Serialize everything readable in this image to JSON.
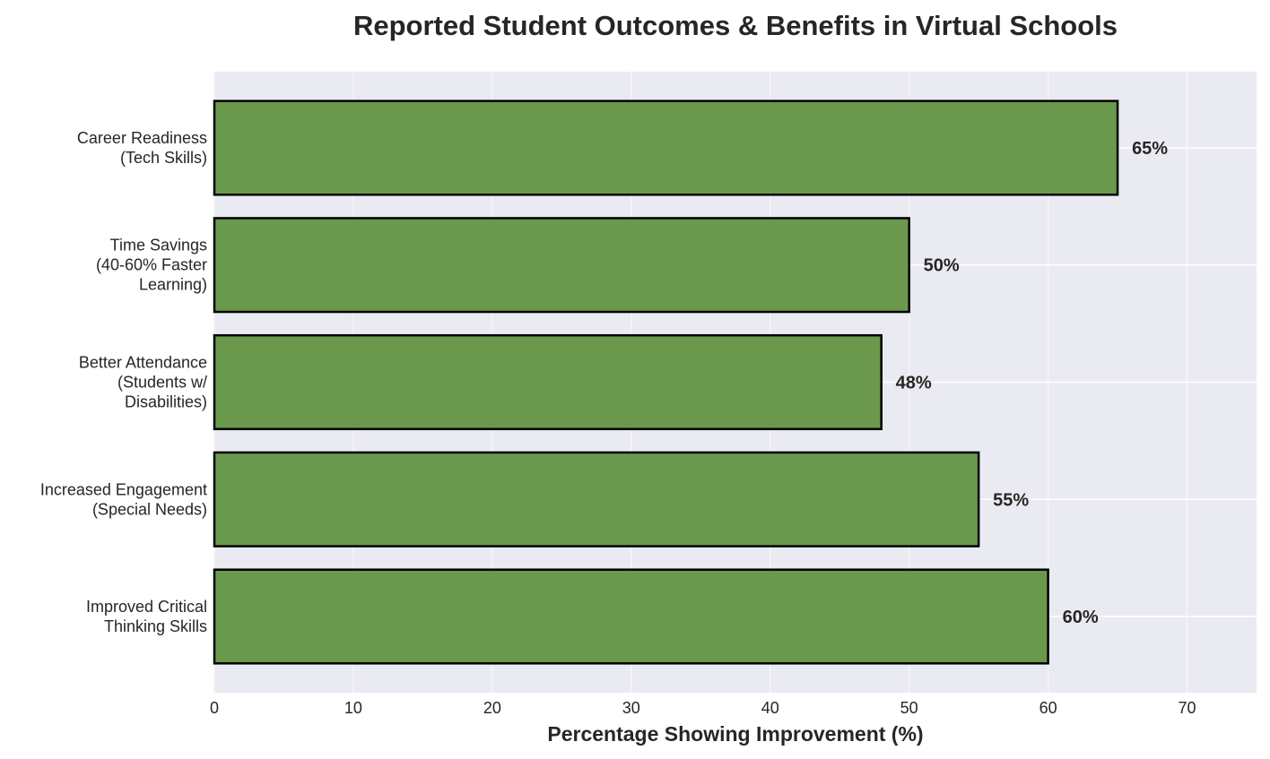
{
  "chart_data": {
    "type": "bar",
    "orientation": "horizontal",
    "title": "Reported Student Outcomes & Benefits in Virtual Schools",
    "xlabel": "Percentage Showing Improvement (%)",
    "ylabel": "",
    "categories": [
      [
        "Improved Critical",
        "Thinking Skills"
      ],
      [
        "Increased Engagement",
        "(Special Needs)"
      ],
      [
        "Better Attendance",
        "(Students w/",
        "Disabilities)"
      ],
      [
        "Time Savings",
        "(40-60% Faster",
        "Learning)"
      ],
      [
        "Career Readiness",
        "(Tech Skills)"
      ]
    ],
    "values": [
      60,
      55,
      48,
      50,
      65
    ],
    "data_labels": [
      "60%",
      "55%",
      "48%",
      "50%",
      "65%"
    ],
    "xlim": [
      0,
      75
    ],
    "xticks": [
      0,
      10,
      20,
      30,
      40,
      50,
      60,
      70
    ],
    "grid": true,
    "colors": {
      "bar": "#6a994e",
      "edge": "#000000",
      "background": "#eaeaf2",
      "text": "#262626"
    }
  }
}
